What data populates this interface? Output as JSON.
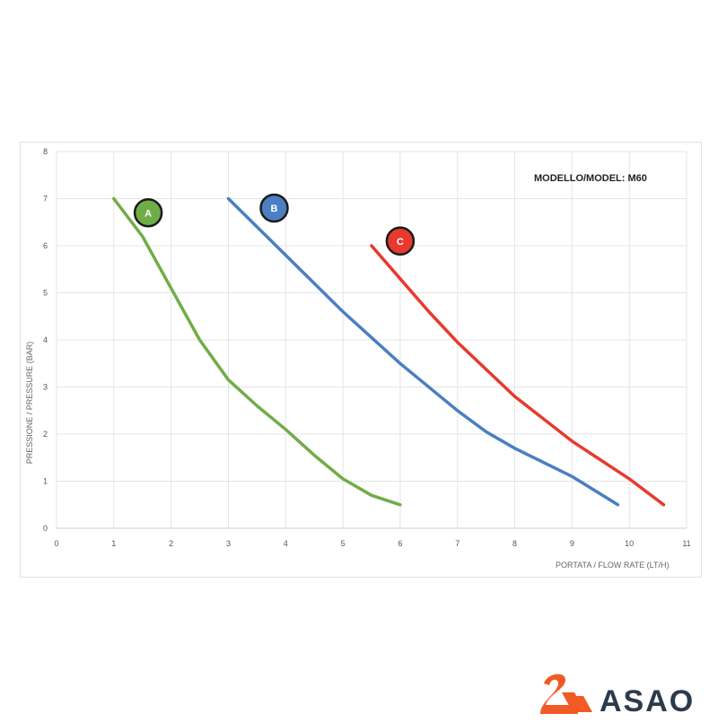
{
  "chart_data": {
    "type": "line",
    "title": "MODELLO/MODEL: M60",
    "xlabel": "PORTATA / FLOW RATE (LT/H)",
    "ylabel": "PRESSIONE / PRESSURE (BAR)",
    "xlim": [
      0,
      11
    ],
    "ylim": [
      0,
      8
    ],
    "xticks": [
      0,
      1,
      2,
      3,
      4,
      5,
      6,
      7,
      8,
      9,
      10,
      11
    ],
    "yticks": [
      0,
      1,
      2,
      3,
      4,
      5,
      6,
      7,
      8
    ],
    "grid": true,
    "series": [
      {
        "name": "A",
        "color": "#70ad47",
        "points": [
          [
            1,
            7
          ],
          [
            1.5,
            6.2
          ],
          [
            2,
            5.1
          ],
          [
            2.5,
            4
          ],
          [
            3,
            3.15
          ],
          [
            3.5,
            2.6
          ],
          [
            4,
            2.1
          ],
          [
            4.5,
            1.55
          ],
          [
            5,
            1.05
          ],
          [
            5.5,
            0.7
          ],
          [
            6,
            0.5
          ]
        ],
        "label_at": [
          1.6,
          6.7
        ]
      },
      {
        "name": "B",
        "color": "#4a7fc1",
        "points": [
          [
            3,
            7
          ],
          [
            4,
            5.8
          ],
          [
            5,
            4.6
          ],
          [
            6,
            3.5
          ],
          [
            7,
            2.5
          ],
          [
            7.5,
            2.05
          ],
          [
            8,
            1.7
          ],
          [
            9,
            1.1
          ],
          [
            9.8,
            0.5
          ]
        ],
        "label_at": [
          3.8,
          6.8
        ]
      },
      {
        "name": "C",
        "color": "#e8392e",
        "points": [
          [
            5.5,
            6
          ],
          [
            6,
            5.3
          ],
          [
            6.5,
            4.6
          ],
          [
            7,
            3.95
          ],
          [
            8,
            2.8
          ],
          [
            9,
            1.85
          ],
          [
            10,
            1.05
          ],
          [
            10.6,
            0.5
          ]
        ],
        "label_at": [
          6,
          6.1
        ]
      }
    ]
  },
  "brand": {
    "name": "ASAO",
    "icon": "stylized-orange-S-with-stripes",
    "colors": {
      "orange": "#f15a24",
      "navy": "#2c3b4c"
    }
  }
}
